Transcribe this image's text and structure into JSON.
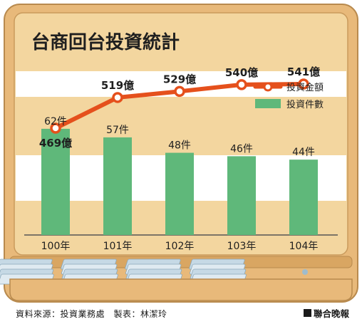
{
  "chart_data": {
    "type": "bar+line",
    "title": "台商回台投資統計",
    "categories": [
      "100年",
      "101年",
      "102年",
      "103年",
      "104年"
    ],
    "series": [
      {
        "name": "投資金額",
        "kind": "line",
        "values": [
          469,
          519,
          529,
          540,
          541
        ],
        "labels": [
          "469億",
          "519億",
          "529億",
          "540億",
          "541億"
        ],
        "color": "#e5501c"
      },
      {
        "name": "投資件數",
        "kind": "bar",
        "values": [
          62,
          57,
          48,
          46,
          44
        ],
        "labels": [
          "62件",
          "57件",
          "48件",
          "46件",
          "44件"
        ],
        "color": "#5fb87a"
      }
    ],
    "legend_position": "right",
    "grid": false
  },
  "footer": {
    "source": "資料來源：投資業務處　製表：林潔玲",
    "publisher": "聯合晚報"
  },
  "colors": {
    "case_outer": "#e8b97a",
    "case_inner": "#f3d69f",
    "band": "#ffffff",
    "bar": "#5fb87a",
    "line": "#e5501c",
    "bill": "#cfe0ea"
  }
}
